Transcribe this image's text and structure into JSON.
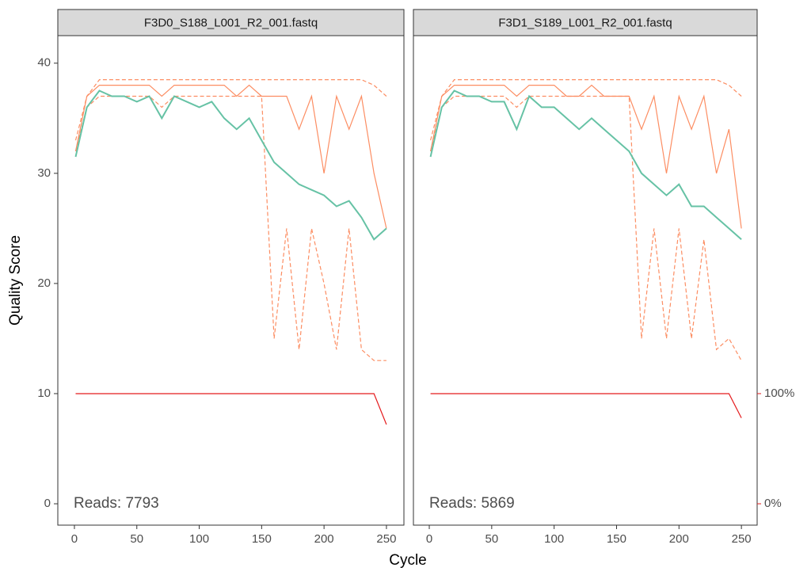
{
  "chart_data": [
    {
      "type": "line",
      "title": "F3D0_S188_L001_R2_001.fastq",
      "xlabel": "Cycle",
      "ylabel": "Quality Score",
      "annotation": "Reads:  7793",
      "xlim": [
        -13.3,
        264
      ],
      "xticks": [
        0,
        50,
        100,
        150,
        200,
        250
      ],
      "ylim": [
        -1.94,
        42.5
      ],
      "yticks": [
        0,
        10,
        20,
        30,
        40
      ],
      "y2lim": [
        -19.4,
        425
      ],
      "x": [
        1,
        10,
        20,
        30,
        40,
        50,
        60,
        70,
        80,
        90,
        100,
        110,
        120,
        130,
        140,
        150,
        160,
        170,
        180,
        190,
        200,
        210,
        220,
        230,
        240,
        250
      ],
      "series": [
        {
          "color": "#fc8d62",
          "style": "dashed",
          "values": [
            32,
            36,
            37,
            37,
            37,
            37,
            37,
            36,
            37,
            37,
            37,
            37,
            37,
            37,
            37,
            37,
            15,
            25,
            14,
            25,
            20,
            14,
            25,
            14,
            13,
            13
          ]
        },
        {
          "color": "#fc8d62",
          "style": "dashed",
          "values": [
            33,
            37,
            38.5,
            38.5,
            38.5,
            38.5,
            38.5,
            38.5,
            38.5,
            38.5,
            38.5,
            38.5,
            38.5,
            38.5,
            38.5,
            38.5,
            38.5,
            38.5,
            38.5,
            38.5,
            38.5,
            38.5,
            38.5,
            38.5,
            38,
            37
          ]
        },
        {
          "color": "#fc8d62",
          "style": "solid",
          "values": [
            32,
            37,
            38,
            38,
            38,
            38,
            38,
            37,
            38,
            38,
            38,
            38,
            38,
            37,
            38,
            37,
            37,
            37,
            34,
            37,
            30,
            37,
            34,
            37,
            30,
            25
          ]
        },
        {
          "color": "#66c2a5",
          "style": "solid",
          "values": [
            31.5,
            36,
            37.5,
            37,
            37,
            36.5,
            37,
            35,
            37,
            36.5,
            36,
            36.5,
            35,
            34,
            35,
            33,
            31,
            30,
            29,
            28.5,
            28,
            27,
            27.5,
            26,
            24,
            25
          ]
        },
        {
          "color": "#e41a1c",
          "style": "thin",
          "axis": "y2",
          "values": [
            100,
            100,
            100,
            100,
            100,
            100,
            100,
            100,
            100,
            100,
            100,
            100,
            100,
            100,
            100,
            100,
            100,
            100,
            100,
            100,
            100,
            100,
            100,
            100,
            100,
            72
          ]
        }
      ]
    },
    {
      "type": "line",
      "title": "F3D1_S189_L001_R2_001.fastq",
      "annotation": "Reads:  5869",
      "xlim": [
        -12.7,
        262.6
      ],
      "xticks": [
        0,
        50,
        100,
        150,
        200,
        250
      ],
      "ylim": [
        -1.94,
        42.5
      ],
      "y2lim": [
        -19.4,
        425
      ],
      "y2ticks": [
        {
          "value": 100,
          "label": "100%"
        },
        {
          "value": 0,
          "label": "0%"
        }
      ],
      "x": [
        1,
        10,
        20,
        30,
        40,
        50,
        60,
        70,
        80,
        90,
        100,
        110,
        120,
        130,
        140,
        150,
        160,
        170,
        180,
        190,
        200,
        210,
        220,
        230,
        240,
        250
      ],
      "series": [
        {
          "color": "#fc8d62",
          "style": "dashed",
          "values": [
            32,
            36,
            37,
            37,
            37,
            37,
            37,
            36,
            37,
            37,
            37,
            37,
            37,
            37,
            37,
            37,
            37,
            15,
            25,
            15,
            25,
            15,
            24,
            14,
            15,
            13
          ]
        },
        {
          "color": "#fc8d62",
          "style": "dashed",
          "values": [
            33,
            37,
            38.5,
            38.5,
            38.5,
            38.5,
            38.5,
            38.5,
            38.5,
            38.5,
            38.5,
            38.5,
            38.5,
            38.5,
            38.5,
            38.5,
            38.5,
            38.5,
            38.5,
            38.5,
            38.5,
            38.5,
            38.5,
            38.5,
            38,
            37
          ]
        },
        {
          "color": "#fc8d62",
          "style": "solid",
          "values": [
            32,
            37,
            38,
            38,
            38,
            38,
            38,
            37,
            38,
            38,
            38,
            37,
            37,
            38,
            37,
            37,
            37,
            34,
            37,
            30,
            37,
            34,
            37,
            30,
            34,
            25
          ]
        },
        {
          "color": "#66c2a5",
          "style": "solid",
          "values": [
            31.5,
            36,
            37.5,
            37,
            37,
            36.5,
            36.5,
            34,
            37,
            36,
            36,
            35,
            34,
            35,
            34,
            33,
            32,
            30,
            29,
            28,
            29,
            27,
            27,
            26,
            25,
            24
          ]
        },
        {
          "color": "#e41a1c",
          "style": "thin",
          "axis": "y2",
          "values": [
            100,
            100,
            100,
            100,
            100,
            100,
            100,
            100,
            100,
            100,
            100,
            100,
            100,
            100,
            100,
            100,
            100,
            100,
            100,
            100,
            100,
            100,
            100,
            100,
            100,
            78
          ]
        }
      ]
    }
  ]
}
